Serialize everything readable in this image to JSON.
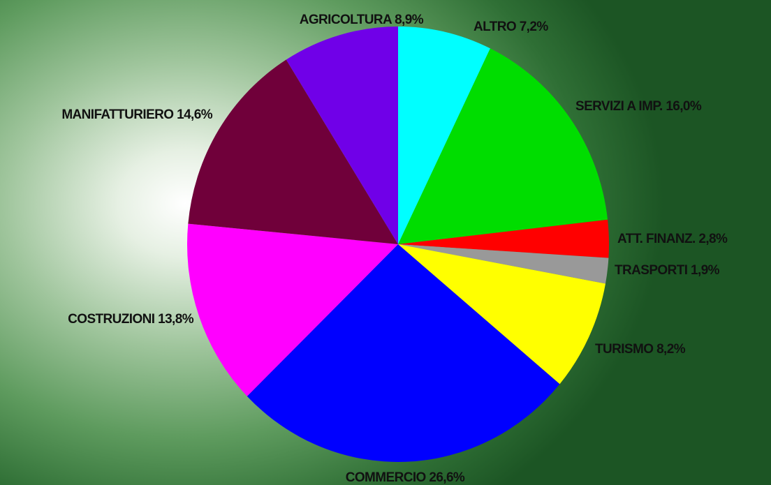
{
  "chart_data": {
    "type": "pie",
    "start_angle_deg": 0,
    "direction": "clockwise",
    "slices": [
      {
        "label": "ALTRO",
        "value": 7.2,
        "value_text": "7,2%",
        "color": "#00ffff"
      },
      {
        "label": "SERVIZI A IMP.",
        "value": 16.0,
        "value_text": "16,0%",
        "color": "#00dd00"
      },
      {
        "label": "ATT. FINANZ.",
        "value": 2.8,
        "value_text": "2,8%",
        "color": "#ff0000"
      },
      {
        "label": "TRASPORTI",
        "value": 1.9,
        "value_text": "1,9%",
        "color": "#999999"
      },
      {
        "label": "TURISMO",
        "value": 8.2,
        "value_text": "8,2%",
        "color": "#ffff00"
      },
      {
        "label": "COMMERCIO",
        "value": 26.6,
        "value_text": "26,6%",
        "color": "#0000ff"
      },
      {
        "label": "COSTRUZIONI",
        "value": 13.8,
        "value_text": "13,8%",
        "color": "#ff00ff"
      },
      {
        "label": "MANIFATTURIERO",
        "value": 14.6,
        "value_text": "14,6%",
        "color": "#70003a"
      },
      {
        "label": "AGRICOLTURA",
        "value": 8.9,
        "value_text": "8,9%",
        "color": "#7000e8"
      }
    ]
  }
}
